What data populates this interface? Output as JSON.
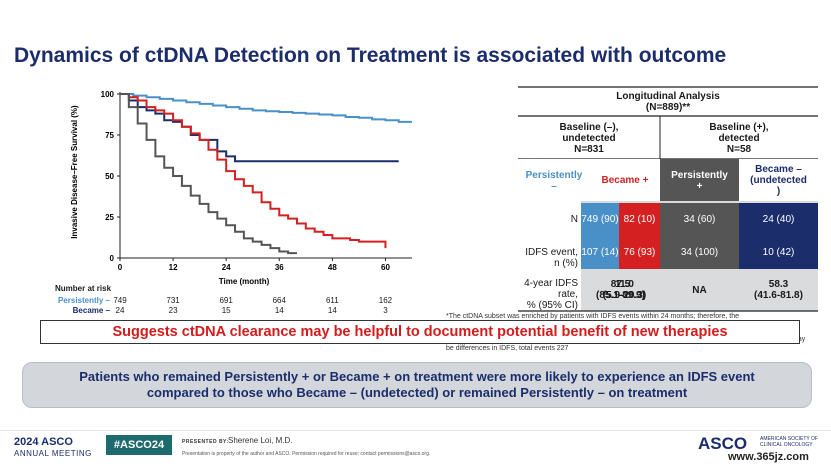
{
  "slide": {
    "title": "Dynamics of ctDNA Detection on Treatment is associated with outcome"
  },
  "chart_data": {
    "type": "line",
    "title": "",
    "xlabel": "Time (month)",
    "ylabel": "Invasive Disease–Free Survival (%)",
    "xlim": [
      0,
      66
    ],
    "ylim": [
      0,
      100
    ],
    "xticks": [
      0,
      12,
      24,
      36,
      48,
      60
    ],
    "yticks": [
      0,
      25,
      50,
      75,
      100
    ],
    "grid": false,
    "series": [
      {
        "name": "Persistently –",
        "color": "#4a90c8",
        "x": [
          0,
          3,
          6,
          9,
          12,
          15,
          18,
          21,
          24,
          27,
          30,
          33,
          36,
          39,
          42,
          45,
          48,
          51,
          54,
          57,
          60,
          63,
          66
        ],
        "y": [
          100,
          99,
          98,
          97,
          96,
          95,
          94,
          93,
          92,
          91,
          90,
          89.5,
          89,
          88.5,
          88,
          87.5,
          87,
          86,
          85.5,
          84.5,
          84,
          83,
          83
        ]
      },
      {
        "name": "Became –",
        "color": "#1b2d6b",
        "x": [
          0,
          2,
          4,
          6,
          8,
          10,
          12,
          14,
          16,
          18,
          20,
          22,
          24,
          26,
          28,
          30,
          40,
          50,
          60,
          63
        ],
        "y": [
          100,
          96,
          92,
          90,
          88,
          84,
          83,
          80,
          75,
          72,
          72,
          65,
          62,
          59,
          59,
          59,
          59,
          59,
          59,
          59
        ]
      },
      {
        "name": "Became +",
        "color": "#d42020",
        "x": [
          0,
          2,
          4,
          6,
          8,
          10,
          12,
          14,
          16,
          18,
          20,
          22,
          24,
          26,
          28,
          30,
          32,
          34,
          36,
          38,
          40,
          42,
          44,
          46,
          48,
          50,
          52,
          54,
          56,
          58,
          60
        ],
        "y": [
          100,
          98,
          96,
          92,
          90,
          88,
          84,
          80,
          76,
          72,
          66,
          60,
          53,
          48,
          44,
          40,
          34,
          30,
          26,
          24,
          21,
          18,
          16,
          14,
          12,
          12,
          11,
          10,
          10,
          10,
          6
        ]
      },
      {
        "name": "Persistently +",
        "color": "#555555",
        "x": [
          0,
          2,
          4,
          6,
          8,
          10,
          12,
          14,
          16,
          18,
          20,
          22,
          24,
          26,
          28,
          30,
          32,
          34,
          36,
          38,
          40
        ],
        "y": [
          100,
          92,
          82,
          72,
          62,
          55,
          50,
          44,
          38,
          33,
          28,
          24,
          20,
          16,
          12,
          10,
          8,
          6,
          4,
          3,
          3
        ]
      }
    ],
    "risk_table": {
      "header": "Number at risk",
      "rows": [
        {
          "label": "Persistently –",
          "color": "#4a90c8",
          "values": [
            "749",
            "731",
            "691",
            "664",
            "611",
            "162"
          ]
        },
        {
          "label": "Became –",
          "color": "#1b2d6b",
          "values": [
            "24",
            "23",
            "15",
            "14",
            "14",
            "3"
          ]
        }
      ]
    }
  },
  "table": {
    "title_line1": "Longitudinal Analysis",
    "title_line2": "(N=889)**",
    "group1_line1": "Baseline (–),",
    "group1_line2": "undetected",
    "group1_line3": "N=831",
    "group2_line1": "Baseline (+),",
    "group2_line2": "detected",
    "group2_line3": "N=58",
    "col1_line1": "Persistently",
    "col1_line2": "–",
    "col2": "Became +",
    "col3_line1": "Persistently",
    "col3_line2": "+",
    "col4_line1": "Became –",
    "col4_line2": "(undetected",
    "col4_line3": ")",
    "row_n": "N",
    "row_event_line1": "IDFS event,",
    "row_event_line2": "n (%)",
    "row_rate_line1": "4-year IDFS",
    "row_rate_line2": "rate,",
    "row_rate_line3": "% (95% CI)",
    "n_col1": "749 (90)",
    "n_col2": "82 (10)",
    "n_col3": "34 (60)",
    "n_col4": "24 (40)",
    "ev_col1": "107 (14)",
    "ev_col2": "76 (93)",
    "ev_col3": "34 (100)",
    "ev_col4": "10 (42)",
    "rate_col1_a": "87.5",
    "rate_col1_b": "(85.1-89.9)",
    "rate_col2_a": "11.0",
    "rate_col2_b": "(5.9-20.3)",
    "rate_col3": "NA",
    "rate_col4_a": "58.3",
    "rate_col4_b": "(41.6-81.8)",
    "colors": {
      "col1": "#4a90c8",
      "col2": "#d42020",
      "col3": "#555555",
      "col4": "#1b2d6b"
    }
  },
  "footnote_top": "*The ctDNA subset was enriched by patients with IDFS events within 24 months; therefore, the",
  "footnote_mid": "may",
  "footnote_bottom": "be differences in IDFS, total events 227",
  "banner": "Suggests ctDNA clearance may be helpful to document potential benefit of new therapies",
  "conclusion": "Patients who remained Persistently + or Became + on treatment were more likely to experience an IDFS event compared to those who Became – (undetected) or remained Persistently –  on treatment",
  "footer": {
    "meeting_line1": "2024 ASCO",
    "meeting_line2": "ANNUAL MEETING",
    "hashtag": "#ASCO24",
    "presented_by": "PRESENTED BY:",
    "presenter": "Sherene Loi, M.D.",
    "disclaimer": "Presentation is property of the author and ASCO. Permission required for reuse; contact permissions@asco.org.",
    "asco_logo": "ASCO",
    "asco_sub": "AMERICAN SOCIETY OF CLINICAL ONCOLOGY",
    "watermark": "www.365jz.com"
  }
}
